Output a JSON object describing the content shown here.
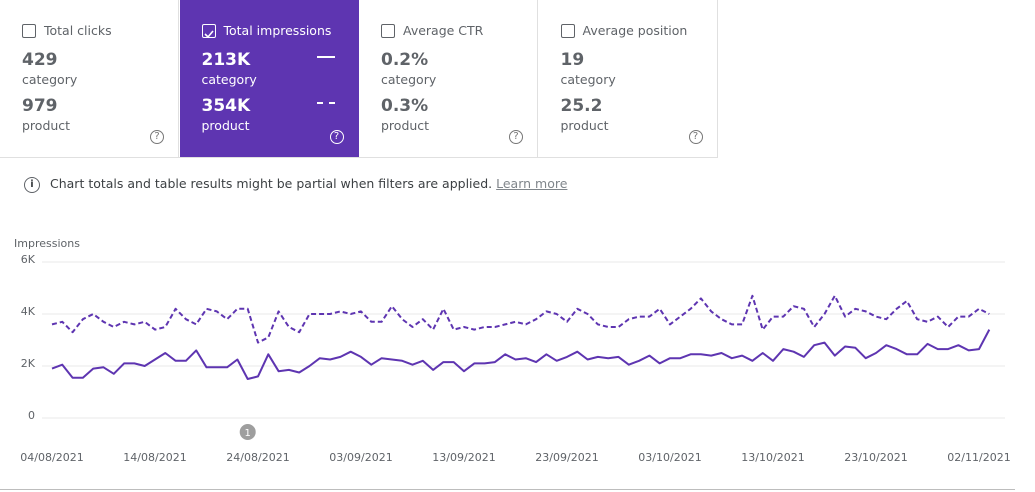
{
  "metrics": [
    {
      "label": "Total clicks",
      "checked": false,
      "rows": [
        {
          "value": "429",
          "label": "category"
        },
        {
          "value": "979",
          "label": "product"
        }
      ]
    },
    {
      "label": "Total impressions",
      "checked": true,
      "rows": [
        {
          "value": "213K",
          "label": "category"
        },
        {
          "value": "354K",
          "label": "product"
        }
      ]
    },
    {
      "label": "Average CTR",
      "checked": false,
      "rows": [
        {
          "value": "0.2%",
          "label": "category"
        },
        {
          "value": "0.3%",
          "label": "product"
        }
      ]
    },
    {
      "label": "Average position",
      "checked": false,
      "rows": [
        {
          "value": "19",
          "label": "category"
        },
        {
          "value": "25.2",
          "label": "product"
        }
      ]
    }
  ],
  "notice": {
    "text": "Chart totals and table results might be partial when filters are applied.",
    "link": "Learn more"
  },
  "chart_data": {
    "type": "line",
    "y_label": "Impressions",
    "annotation": "1",
    "categories": [
      "04/08/2021",
      null,
      null,
      null,
      null,
      null,
      null,
      null,
      null,
      null,
      "14/08/2021",
      null,
      null,
      null,
      null,
      null,
      null,
      null,
      null,
      null,
      "24/08/2021",
      null,
      null,
      null,
      null,
      null,
      null,
      null,
      null,
      null,
      "03/09/2021",
      null,
      null,
      null,
      null,
      null,
      null,
      null,
      null,
      null,
      "13/09/2021",
      null,
      null,
      null,
      null,
      null,
      null,
      null,
      null,
      null,
      "23/09/2021",
      null,
      null,
      null,
      null,
      null,
      null,
      null,
      null,
      null,
      "03/10/2021",
      null,
      null,
      null,
      null,
      null,
      null,
      null,
      null,
      null,
      "13/10/2021",
      null,
      null,
      null,
      null,
      null,
      null,
      null,
      null,
      null,
      "23/10/2021",
      null,
      null,
      null,
      null,
      null,
      null,
      null,
      null,
      null,
      "02/11/2021",
      null
    ],
    "series": [
      {
        "color": "#5e35b1",
        "dashed": false,
        "values": [
          1900,
          2050,
          1550,
          1550,
          1900,
          1950,
          1700,
          2100,
          2100,
          2000,
          2250,
          2500,
          2200,
          2200,
          2600,
          1950,
          1950,
          1950,
          2250,
          1500,
          1600,
          2450,
          1800,
          1850,
          1750,
          2000,
          2300,
          2250,
          2350,
          2550,
          2350,
          2050,
          2300,
          2250,
          2200,
          2050,
          2200,
          1850,
          2150,
          2150,
          1800,
          2100,
          2100,
          2150,
          2450,
          2250,
          2300,
          2150,
          2450,
          2200,
          2350,
          2550,
          2250,
          2350,
          2300,
          2350,
          2050,
          2200,
          2400,
          2100,
          2300,
          2300,
          2450,
          2450,
          2400,
          2500,
          2300,
          2400,
          2200,
          2500,
          2200,
          2650,
          2550,
          2350,
          2800,
          2900,
          2400,
          2750,
          2700,
          2300,
          2500,
          2800,
          2650,
          2450,
          2450,
          2850,
          2650,
          2650,
          2800,
          2600,
          2650,
          3400
        ]
      },
      {
        "color": "#5e35b1",
        "dashed": true,
        "values": [
          3600,
          3700,
          3300,
          3800,
          4000,
          3700,
          3500,
          3700,
          3600,
          3700,
          3400,
          3500,
          4200,
          3800,
          3600,
          4200,
          4100,
          3800,
          4200,
          4200,
          2900,
          3100,
          4100,
          3500,
          3300,
          4000,
          4000,
          4000,
          4100,
          4000,
          4100,
          3700,
          3700,
          4300,
          3800,
          3500,
          3800,
          3400,
          4200,
          3400,
          3500,
          3400,
          3500,
          3500,
          3600,
          3700,
          3600,
          3800,
          4100,
          4000,
          3700,
          4200,
          4000,
          3600,
          3500,
          3500,
          3800,
          3900,
          3900,
          4200,
          3600,
          3900,
          4200,
          4600,
          4100,
          3800,
          3600,
          3600,
          4700,
          3400,
          3900,
          3900,
          4300,
          4200,
          3500,
          4000,
          4700,
          3900,
          4200,
          4100,
          3900,
          3800,
          4200,
          4500,
          3800,
          3700,
          3900,
          3500,
          3900,
          3900,
          4200,
          4000
        ]
      }
    ],
    "ylim": [
      0,
      6000
    ],
    "yticks": [
      0,
      {
        "value": 2000,
        "label": "2K"
      },
      {
        "value": 4000,
        "label": "4K"
      },
      {
        "value": 6000,
        "label": "6K"
      }
    ],
    "grid": true
  }
}
